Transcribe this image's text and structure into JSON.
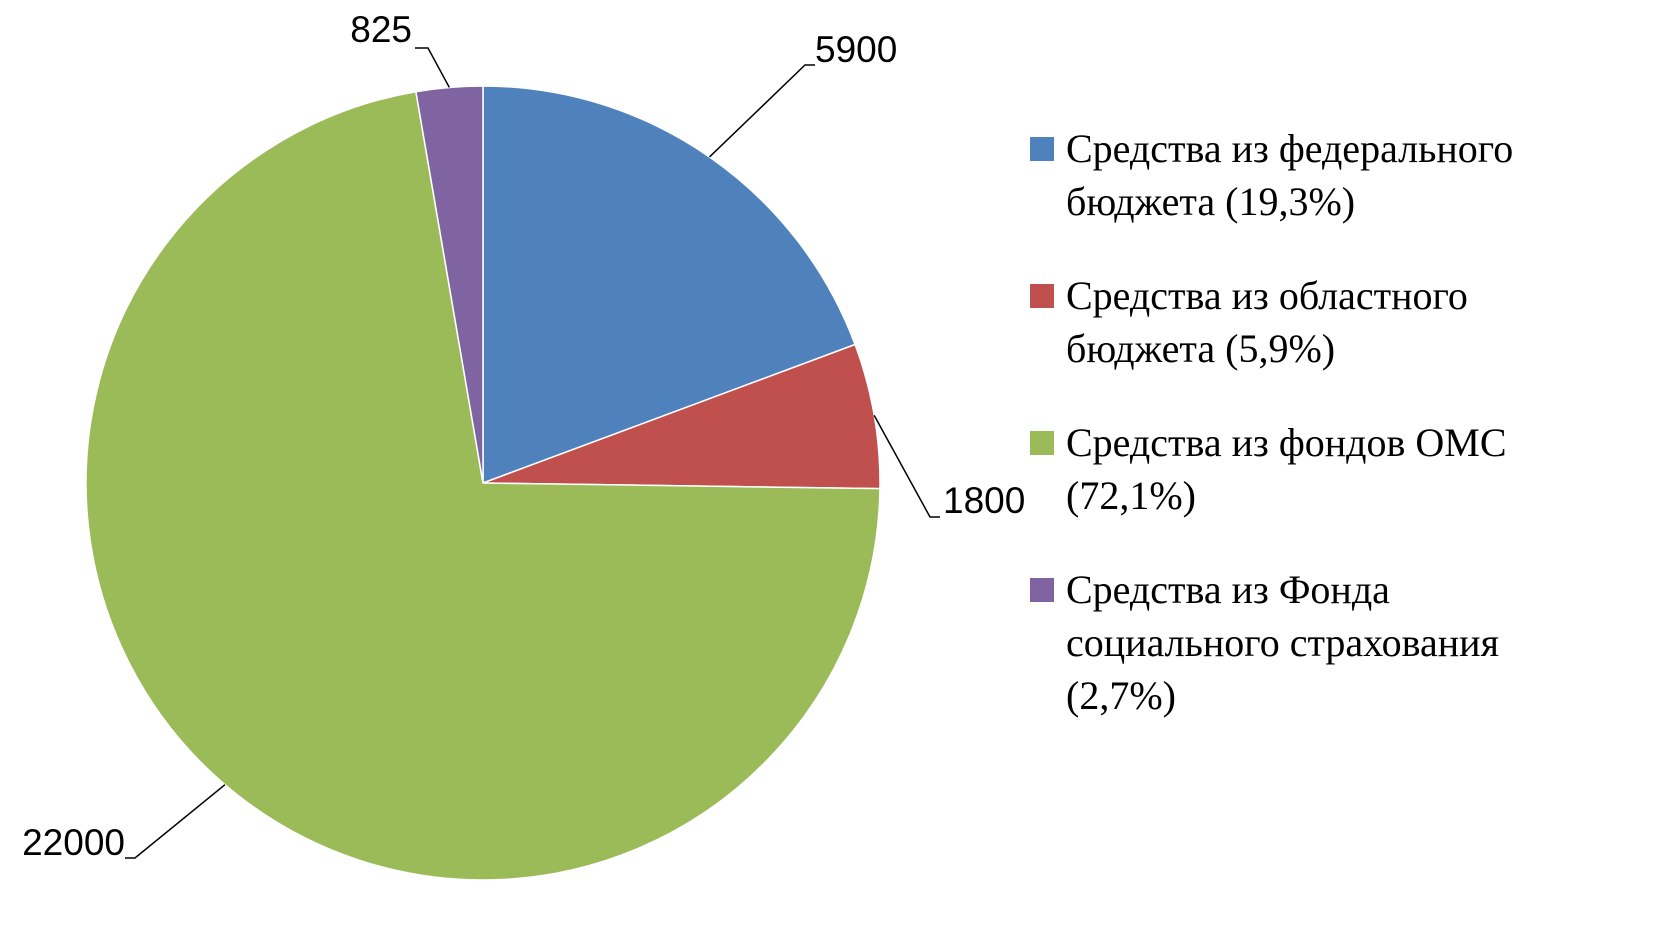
{
  "chart_data": {
    "type": "pie",
    "categories": [
      "Средства из федерального бюджета (19,3%)",
      "Средства из областного бюджета (5,9%)",
      "Средства из фондов ОМС (72,1%)",
      "Средства из Фонда социального страхования (2,7%)"
    ],
    "values": [
      5900,
      1800,
      22000,
      825
    ],
    "colors": [
      "#4f81bd",
      "#c0504d",
      "#9bbb59",
      "#8064a2"
    ],
    "legend": "right"
  }
}
